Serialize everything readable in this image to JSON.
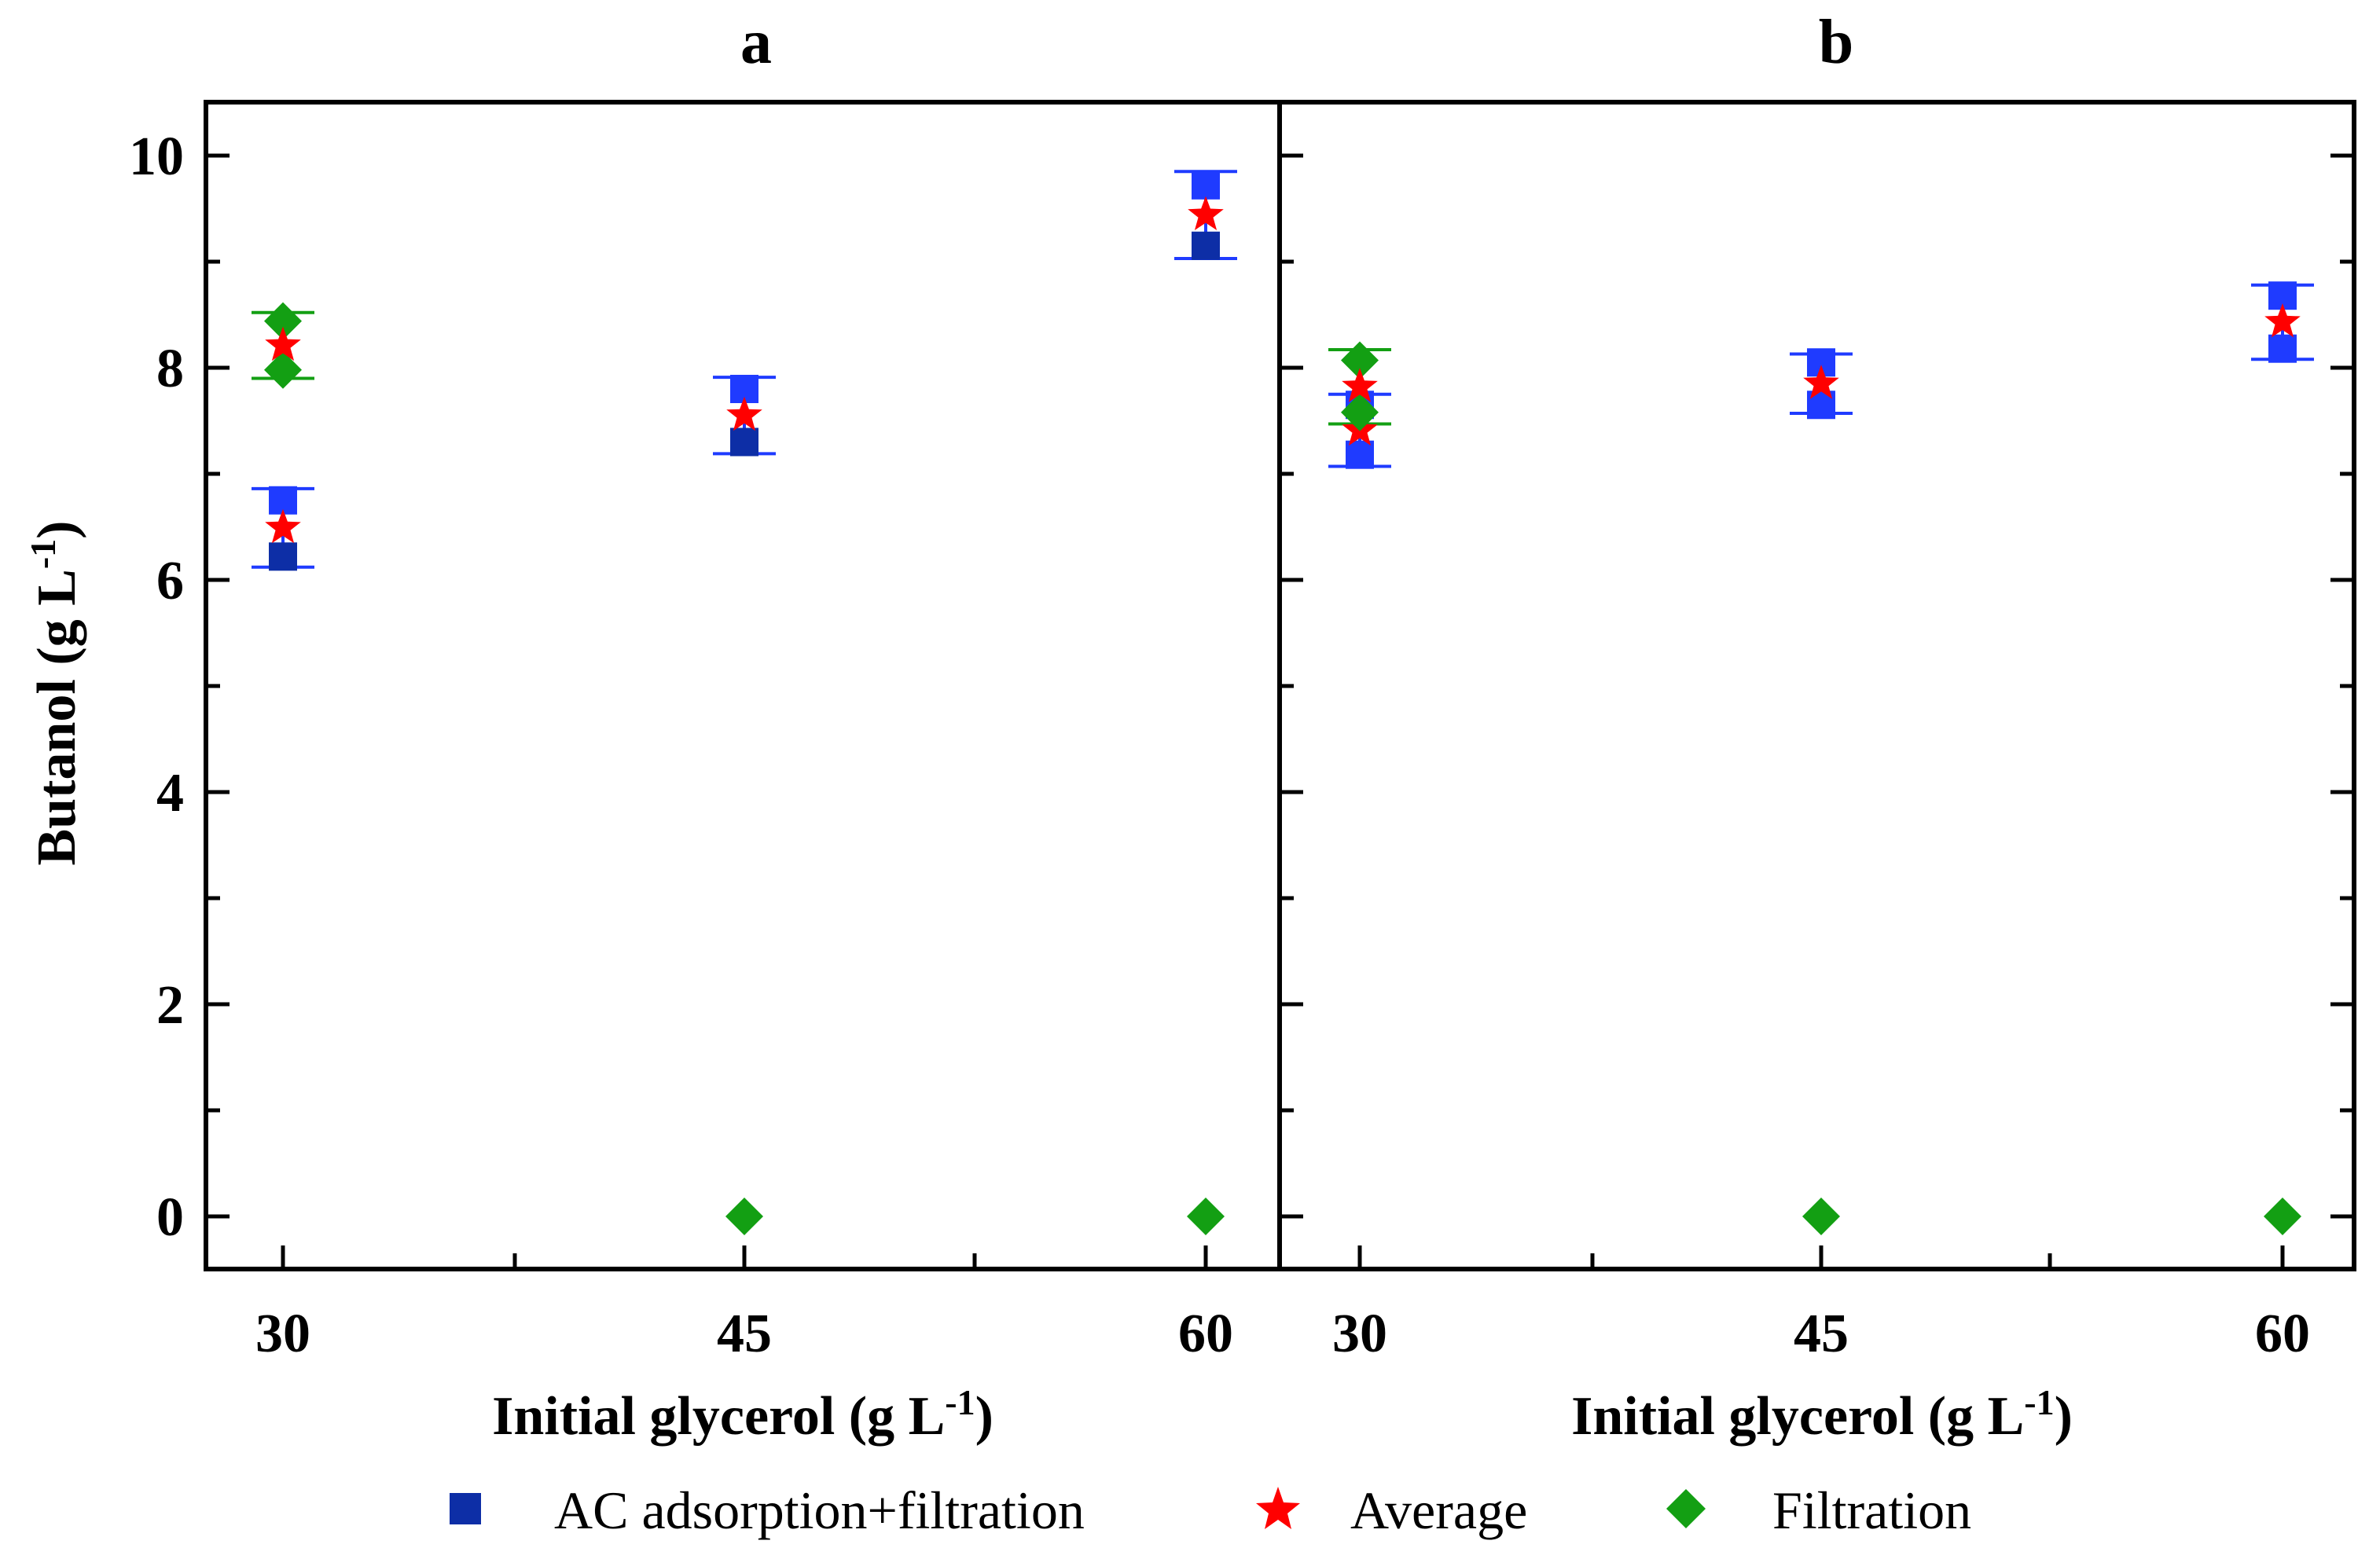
{
  "chart_data": [
    {
      "type": "scatter",
      "title": "a",
      "xlabel": "Initial glycerol (g L",
      "xlabel_sup": "-1",
      "xlabel_close": ")",
      "ylabel": "Butanol (g L",
      "ylabel_sup": "-1",
      "ylabel_close": ")",
      "x_ticks": [
        30,
        45,
        60
      ],
      "y_ticks": [
        0,
        2,
        4,
        6,
        8,
        10
      ],
      "xlim": [
        27.5,
        63.5
      ],
      "ylim": [
        -0.5,
        10.5
      ],
      "series": [
        {
          "name": "AC adsorption+filtration",
          "marker": "square",
          "points": [
            {
              "x": 30,
              "y": 6.22
            },
            {
              "x": 30,
              "y": 6.75
            },
            {
              "x": 45,
              "y": 7.3
            },
            {
              "x": 45,
              "y": 7.8
            },
            {
              "x": 60,
              "y": 9.15
            },
            {
              "x": 60,
              "y": 9.72
            }
          ]
        },
        {
          "name": "Average",
          "marker": "star",
          "points": [
            {
              "x": 30,
              "y": 6.49,
              "err": 0.37
            },
            {
              "x": 45,
              "y": 7.55,
              "err": 0.36
            },
            {
              "x": 60,
              "y": 9.44,
              "err": 0.41
            }
          ]
        },
        {
          "name": "Filtration",
          "marker": "diamond",
          "points": [
            {
              "x": 30,
              "y": 7.98
            },
            {
              "x": 30,
              "y": 8.44
            },
            {
              "x": 45,
              "y": 0
            },
            {
              "x": 60,
              "y": 0
            }
          ],
          "average": [
            {
              "x": 30,
              "y": 8.21,
              "err": 0.31
            },
            {
              "x": 45,
              "y": 0,
              "err": 0
            },
            {
              "x": 60,
              "y": 0,
              "err": 0
            }
          ]
        }
      ]
    },
    {
      "type": "scatter",
      "title": "b",
      "xlabel": "Initial glycerol (g L",
      "xlabel_sup": "-1",
      "xlabel_close": ")",
      "x_ticks": [
        30,
        45,
        60
      ],
      "xlim": [
        30,
        63.5
      ],
      "ylim": [
        -0.5,
        10.5
      ],
      "series": [
        {
          "name": "AC adsorption+filtration",
          "marker": "square",
          "points": [
            {
              "x": 30,
              "y": 7.18
            },
            {
              "x": 30,
              "y": 7.65
            },
            {
              "x": 45,
              "y": 7.65
            },
            {
              "x": 45,
              "y": 8.05
            },
            {
              "x": 60,
              "y": 8.18
            },
            {
              "x": 60,
              "y": 8.68
            }
          ]
        },
        {
          "name": "Average",
          "marker": "star",
          "points": [
            {
              "x": 30,
              "y": 7.41,
              "err": 0.34
            },
            {
              "x": 45,
              "y": 7.85,
              "err": 0.28
            },
            {
              "x": 60,
              "y": 8.43,
              "err": 0.35
            }
          ]
        },
        {
          "name": "Filtration",
          "marker": "diamond",
          "points": [
            {
              "x": 30,
              "y": 7.58
            },
            {
              "x": 30,
              "y": 8.07
            },
            {
              "x": 45,
              "y": 0
            },
            {
              "x": 60,
              "y": 0
            }
          ],
          "average": [
            {
              "x": 30,
              "y": 7.82,
              "err": 0.35
            },
            {
              "x": 45,
              "y": 0,
              "err": 0
            },
            {
              "x": 60,
              "y": 0,
              "err": 0
            }
          ]
        }
      ]
    }
  ],
  "legend": {
    "position": "bottom",
    "items": [
      {
        "label": "AC adsorption+filtration",
        "marker": "square",
        "color": "#0d2ea6"
      },
      {
        "label": "Average",
        "marker": "star",
        "color": "#ff0000"
      },
      {
        "label": "Filtration",
        "marker": "diamond",
        "color": "#139f13"
      }
    ]
  },
  "colors": {
    "square_light": "#1f3bff",
    "square_dark": "#0d2ea6",
    "average": "#ff0000",
    "filtration": "#139f13",
    "error_square": "#1f3bff",
    "error_filtration": "#139f13",
    "axes": "#000000"
  }
}
